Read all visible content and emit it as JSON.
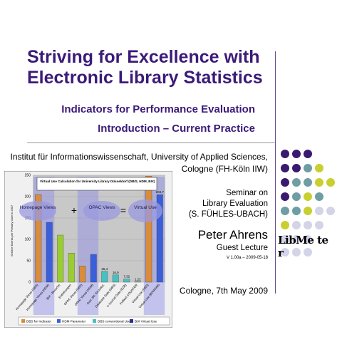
{
  "title": {
    "line1": "Striving for Excellence with",
    "line2": "Electronic Library Statistics"
  },
  "subtitle1": "Indicators for Performance Evaluation",
  "subtitle2": "Introduction – Current Practice",
  "institute_line1": "Institut für Informationswissenschaft, University of Applied Sciences,",
  "institute_line2": "Cologne (FH-Köln IIW)",
  "seminar": {
    "line1": "Seminar on",
    "line2": "Library Evaluation",
    "line3": "(S. FÜHLES-UBACH)"
  },
  "presenter": "Peter Ahrens",
  "role": "Guest Lecture",
  "version": "V 1.00a – 2009-05-18",
  "date": "Cologne, 7th May 2009",
  "logo": {
    "line1": "LibMe te",
    "line2": "r"
  },
  "colors": {
    "title": "#3b1a78",
    "dot_purple": "#3a1a6e",
    "dot_teal": "#6e9da3",
    "dot_yellow": "#c9cf2f",
    "dot_light": "#d4d4e8"
  },
  "chart_data": {
    "type": "bar",
    "title": "Virtual Use Calculation for University Library Düsseldorf (DB/S, HDM, BIX)",
    "ylabel": "Service Events per Primary User in 2007",
    "ylim": [
      0,
      250
    ],
    "yticks": [
      0,
      50,
      100,
      150,
      200,
      250
    ],
    "categories": [
      "Homepage Views (DBS)",
      "Homepage Views (HDM)",
      "BIX - Besuche",
      "Entleihungen",
      "OPAC Views (DBS)",
      "OPAC Views (HDM)",
      "Ausl. Bd. Einzelbd.",
      "Database Gate (DBS)",
      "e-Journal Gate (EZB)",
      "Fulltext COUNTER",
      "Virtual Use (DBS)",
      "Virtual Use (BIX/HDM)"
    ],
    "values": [
      205,
      140,
      110,
      68,
      38,
      65,
      25.4,
      16.9,
      7.32,
      1.22,
      248,
      204.7
    ],
    "data_labels": [
      "",
      "",
      "",
      "",
      "",
      "",
      "25,4",
      "16,9",
      "7,32",
      "1,22",
      "",
      "204,7"
    ],
    "colors": [
      "#d98c3a",
      "#3a5fd9",
      "#9acd32",
      "#9acd32",
      "#d98c3a",
      "#3a5fd9",
      "#48c0c0",
      "#48c0c0",
      "#48c0c0",
      "#48c0c0",
      "#d98c3a",
      "#3a5fd9"
    ],
    "formula": {
      "term1": "Homepage Views",
      "op1": "+",
      "term2": "OPAC Views",
      "op2": "=",
      "term3": "Virtual Use"
    },
    "legend": [
      "DBS for Indicator",
      "HDM Parameter",
      "DBS conventional Use",
      "BIX Virtual Use"
    ],
    "legend_colors": [
      "#d98c3a",
      "#3a5fd9",
      "#48c0c0",
      "#2b2f8c"
    ]
  }
}
